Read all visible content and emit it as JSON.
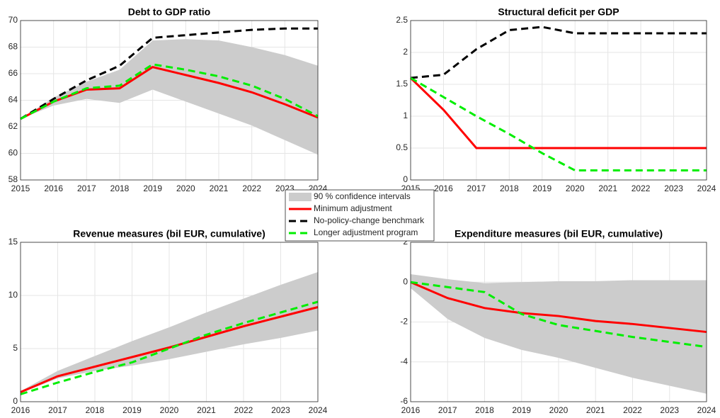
{
  "chart_data": [
    {
      "type": "line",
      "title": "Debt to GDP ratio",
      "x": [
        2015,
        2016,
        2017,
        2018,
        2019,
        2020,
        2021,
        2022,
        2023,
        2024
      ],
      "xlim": [
        2015,
        2024
      ],
      "xticks": [
        2015,
        2016,
        2017,
        2018,
        2019,
        2020,
        2021,
        2022,
        2023,
        2024
      ],
      "ylim": [
        58,
        70
      ],
      "yticks": [
        58,
        60,
        62,
        64,
        66,
        68,
        70
      ],
      "grid": true,
      "legend": "center",
      "series": [
        {
          "name": "90 % confidence intervals",
          "type": "band",
          "color": "#cccccc",
          "upper": [
            62.6,
            64.2,
            65.4,
            66.3,
            68.5,
            68.6,
            68.5,
            68.0,
            67.4,
            66.6
          ],
          "lower": [
            62.6,
            63.6,
            64.1,
            63.8,
            64.8,
            63.9,
            63.0,
            62.1,
            61.0,
            59.9
          ]
        },
        {
          "name": "Minimum adjustment",
          "color": "#ff0000",
          "dash": false,
          "values": [
            62.6,
            63.9,
            64.8,
            64.9,
            66.5,
            65.9,
            65.3,
            64.6,
            63.7,
            62.7
          ]
        },
        {
          "name": "No-policy-change benchmark",
          "color": "#000000",
          "dash": true,
          "values": [
            62.6,
            64.1,
            65.5,
            66.6,
            68.7,
            68.9,
            69.1,
            69.3,
            69.4,
            69.4
          ]
        },
        {
          "name": "Longer adjustment program",
          "color": "#00ee00",
          "dash": true,
          "values": [
            62.6,
            63.9,
            64.9,
            65.1,
            66.7,
            66.3,
            65.8,
            65.1,
            64.1,
            62.8
          ]
        }
      ]
    },
    {
      "type": "line",
      "title": "Structural deficit per GDP",
      "x": [
        2015,
        2016,
        2017,
        2018,
        2019,
        2020,
        2021,
        2022,
        2023,
        2024
      ],
      "xlim": [
        2015,
        2024
      ],
      "xticks": [
        2015,
        2016,
        2017,
        2018,
        2019,
        2020,
        2021,
        2022,
        2023,
        2024
      ],
      "ylim": [
        0,
        2.5
      ],
      "yticks": [
        0,
        0.5,
        1,
        1.5,
        2,
        2.5
      ],
      "grid": true,
      "series": [
        {
          "color": "#000000",
          "dash": true,
          "values": [
            1.6,
            1.65,
            2.05,
            2.35,
            2.4,
            2.3,
            2.3,
            2.3,
            2.3,
            2.3
          ]
        },
        {
          "color": "#ff0000",
          "dash": false,
          "values": [
            1.6,
            1.1,
            0.5,
            0.5,
            0.5,
            0.5,
            0.5,
            0.5,
            0.5,
            0.5
          ]
        },
        {
          "color": "#00ee00",
          "dash": true,
          "values": [
            1.6,
            1.3,
            1.0,
            0.72,
            0.42,
            0.15,
            0.15,
            0.15,
            0.15,
            0.15
          ]
        }
      ]
    },
    {
      "type": "line",
      "title": "Revenue measures (bil EUR, cumulative)",
      "x": [
        2016,
        2017,
        2018,
        2019,
        2020,
        2021,
        2022,
        2023,
        2024
      ],
      "xlim": [
        2016,
        2024
      ],
      "xticks": [
        2016,
        2017,
        2018,
        2019,
        2020,
        2021,
        2022,
        2023,
        2024
      ],
      "ylim": [
        0,
        15
      ],
      "yticks": [
        0,
        5,
        10,
        15
      ],
      "grid": true,
      "series": [
        {
          "type": "band",
          "color": "#cccccc",
          "upper": [
            1.0,
            2.9,
            4.3,
            5.7,
            7.0,
            8.4,
            9.7,
            11.0,
            12.2
          ],
          "lower": [
            0.8,
            2.2,
            2.9,
            3.4,
            4.0,
            4.7,
            5.4,
            6.0,
            6.7
          ]
        },
        {
          "color": "#ff0000",
          "dash": false,
          "values": [
            0.9,
            2.4,
            3.3,
            4.2,
            5.1,
            6.1,
            7.1,
            8.0,
            8.9
          ]
        },
        {
          "color": "#00ee00",
          "dash": true,
          "values": [
            0.7,
            1.8,
            2.8,
            3.7,
            5.0,
            6.3,
            7.4,
            8.4,
            9.4
          ]
        }
      ]
    },
    {
      "type": "line",
      "title": "Expenditure measures (bil EUR, cumulative)",
      "x": [
        2016,
        2017,
        2018,
        2019,
        2020,
        2021,
        2022,
        2023,
        2024
      ],
      "xlim": [
        2016,
        2024
      ],
      "xticks": [
        2016,
        2017,
        2018,
        2019,
        2020,
        2021,
        2022,
        2023,
        2024
      ],
      "ylim": [
        -6,
        2
      ],
      "yticks": [
        -6,
        -4,
        -2,
        0,
        2
      ],
      "grid": true,
      "series": [
        {
          "type": "band",
          "color": "#cccccc",
          "upper": [
            0.4,
            0.15,
            -0.05,
            0,
            0.05,
            0.05,
            0.1,
            0.1,
            0.1
          ],
          "lower": [
            -0.3,
            -1.85,
            -2.8,
            -3.4,
            -3.8,
            -4.3,
            -4.8,
            -5.2,
            -5.6
          ]
        },
        {
          "color": "#ff0000",
          "dash": false,
          "values": [
            0,
            -0.8,
            -1.3,
            -1.55,
            -1.7,
            -1.95,
            -2.1,
            -2.3,
            -2.5
          ]
        },
        {
          "color": "#00ee00",
          "dash": true,
          "values": [
            0,
            -0.25,
            -0.5,
            -1.6,
            -2.15,
            -2.45,
            -2.75,
            -3.0,
            -3.25
          ]
        }
      ]
    }
  ]
}
